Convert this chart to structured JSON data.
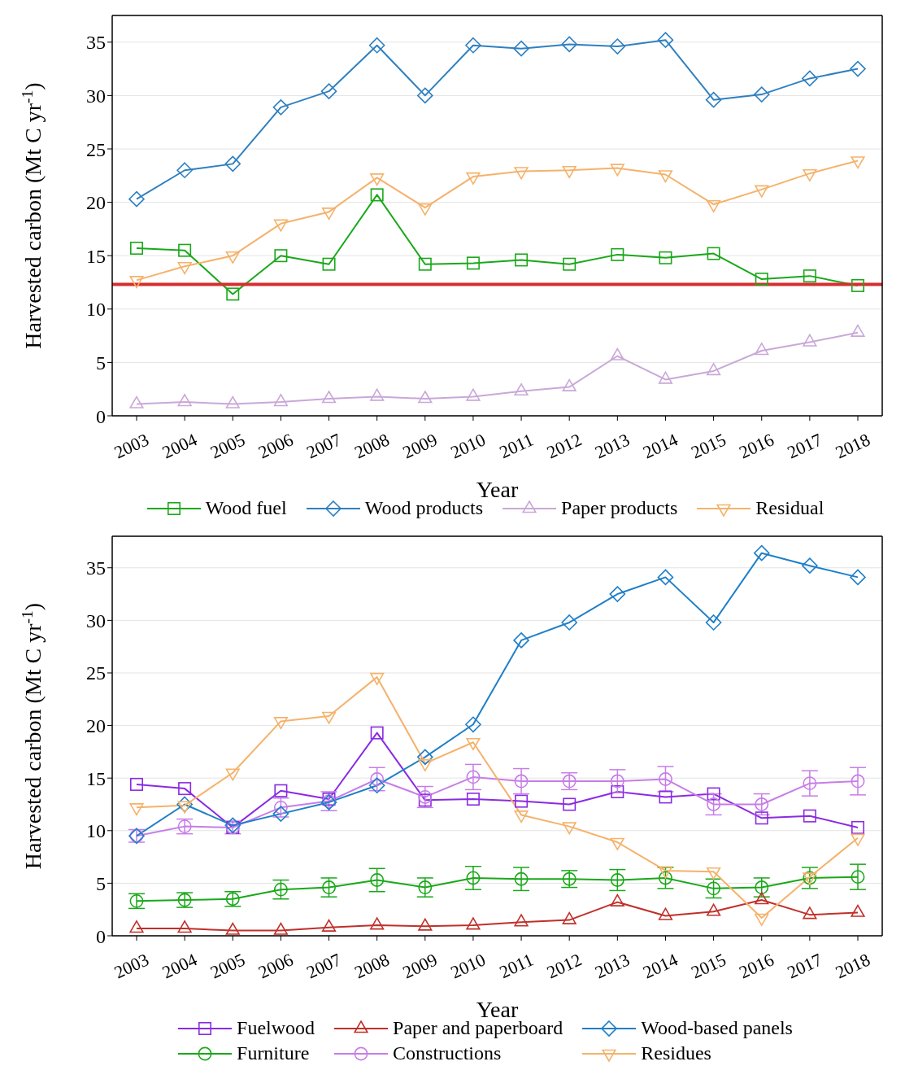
{
  "chart_data": [
    {
      "type": "line",
      "xlabel": "Year",
      "ylabel": "Harvested carbon (Mt C yr$^{-1}$)",
      "categories": [
        "2003",
        "2004",
        "2005",
        "2006",
        "2007",
        "2008",
        "2009",
        "2010",
        "2011",
        "2012",
        "2013",
        "2014",
        "2015",
        "2016",
        "2017",
        "2018"
      ],
      "series": [
        {
          "name": "Wood fuel",
          "color": "#1aa81a",
          "marker": "square",
          "values": [
            15.7,
            15.5,
            11.4,
            15.0,
            14.2,
            20.7,
            14.2,
            14.3,
            14.6,
            14.2,
            15.1,
            14.8,
            15.2,
            12.8,
            13.1,
            12.2
          ]
        },
        {
          "name": "Wood products",
          "color": "#2f80c0",
          "marker": "diamond",
          "values": [
            20.3,
            23.0,
            23.6,
            28.9,
            30.4,
            34.7,
            30.0,
            34.7,
            34.4,
            34.8,
            34.6,
            35.2,
            29.6,
            30.1,
            31.6,
            32.5
          ]
        },
        {
          "name": "Paper products",
          "color": "#c9a8d8",
          "marker": "triangle",
          "values": [
            1.1,
            1.3,
            1.1,
            1.3,
            1.6,
            1.8,
            1.6,
            1.8,
            2.3,
            2.7,
            5.6,
            3.4,
            4.2,
            6.1,
            6.9,
            7.8
          ]
        },
        {
          "name": "Residual",
          "color": "#f5b26b",
          "marker": "triangle-down",
          "values": [
            12.7,
            14.0,
            15.0,
            18.0,
            19.1,
            22.3,
            19.5,
            22.4,
            22.9,
            23.0,
            23.2,
            22.6,
            19.8,
            21.2,
            22.7,
            23.9
          ]
        }
      ],
      "ylim": [
        0,
        37.5
      ],
      "yticks": [
        0,
        5,
        10,
        15,
        20,
        25,
        30,
        35
      ],
      "grid": "y",
      "legend": "bottom",
      "ref_lines": [
        {
          "axis": "y",
          "value": 12.3,
          "color": "#d62f2f"
        }
      ]
    },
    {
      "type": "line",
      "xlabel": "Year",
      "ylabel": "Harvested carbon (Mt C yr$^{-1}$)",
      "categories": [
        "2003",
        "2004",
        "2005",
        "2006",
        "2007",
        "2008",
        "2009",
        "2010",
        "2011",
        "2012",
        "2013",
        "2014",
        "2015",
        "2016",
        "2017",
        "2018"
      ],
      "series": [
        {
          "name": "Fuelwood",
          "color": "#8a2be2",
          "marker": "square",
          "values": [
            14.4,
            14.0,
            10.3,
            13.8,
            13.0,
            19.3,
            12.9,
            13.0,
            12.8,
            12.5,
            13.7,
            13.2,
            13.5,
            11.2,
            11.4,
            10.3
          ]
        },
        {
          "name": "Furniture",
          "color": "#1aa81a",
          "marker": "circle",
          "values": [
            3.3,
            3.4,
            3.5,
            4.4,
            4.6,
            5.3,
            4.6,
            5.5,
            5.4,
            5.4,
            5.3,
            5.5,
            4.5,
            4.6,
            5.5,
            5.6
          ],
          "errors": [
            0.7,
            0.7,
            0.7,
            0.9,
            0.9,
            1.1,
            0.9,
            1.1,
            1.1,
            0.8,
            1.0,
            1.0,
            0.9,
            0.9,
            1.0,
            1.2
          ]
        },
        {
          "name": "Paper and paperboard",
          "color": "#c0302a",
          "marker": "triangle",
          "values": [
            0.7,
            0.7,
            0.5,
            0.5,
            0.8,
            1.0,
            0.9,
            1.0,
            1.3,
            1.5,
            3.2,
            1.9,
            2.3,
            3.4,
            2.0,
            2.2
          ]
        },
        {
          "name": "Constructions",
          "color": "#c77de8",
          "marker": "circle",
          "values": [
            9.5,
            10.4,
            10.3,
            12.2,
            12.8,
            14.9,
            13.2,
            15.1,
            14.7,
            14.7,
            14.7,
            14.9,
            12.5,
            12.5,
            14.5,
            14.7
          ],
          "errors": [
            0.6,
            0.7,
            0.6,
            0.9,
            0.9,
            1.1,
            1.0,
            1.2,
            1.2,
            0.8,
            1.1,
            1.2,
            1.0,
            1.0,
            1.2,
            1.3
          ]
        },
        {
          "name": "Wood-based panels",
          "color": "#1f7fc8",
          "marker": "diamond",
          "values": [
            9.5,
            12.5,
            10.5,
            11.6,
            12.7,
            14.3,
            17.0,
            20.1,
            28.1,
            29.8,
            32.5,
            34.1,
            29.8,
            36.4,
            35.2,
            34.1
          ]
        },
        {
          "name": "Residues",
          "color": "#f5b26b",
          "marker": "triangle-down",
          "values": [
            12.2,
            12.4,
            15.5,
            20.4,
            20.9,
            24.6,
            16.4,
            18.4,
            11.5,
            10.4,
            8.9,
            6.2,
            6.1,
            1.7,
            5.6,
            9.3
          ]
        }
      ],
      "ylim": [
        0,
        38
      ],
      "yticks": [
        0,
        5,
        10,
        15,
        20,
        25,
        30,
        35
      ],
      "grid": "y",
      "legend": "bottom"
    }
  ]
}
